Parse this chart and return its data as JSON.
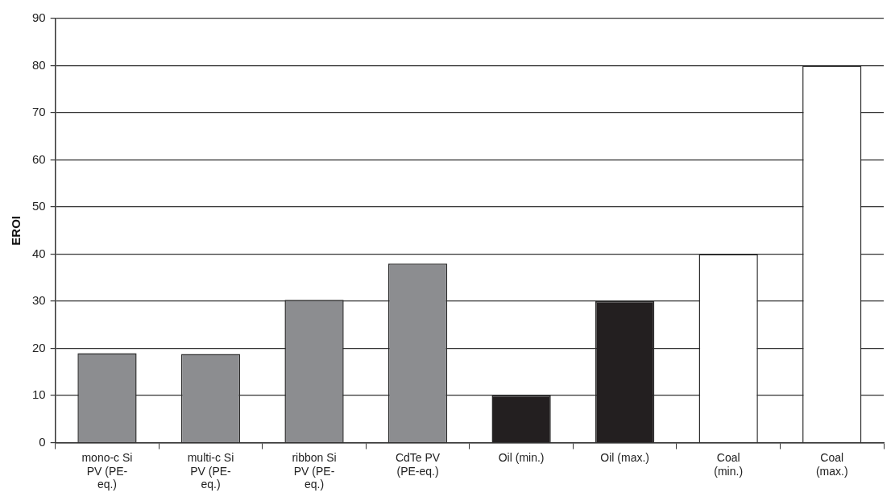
{
  "chart_data": {
    "type": "bar",
    "ylabel": "EROI",
    "categories": [
      "mono-c Si PV (PE-eq.)",
      "multi-c Si PV (PE-eq.)",
      "ribbon Si PV (PE-eq.)",
      "CdTe PV (PE-eq.)",
      "Oil (min.)",
      "Oil (max.)",
      "Coal (min.)",
      "Coal (max.)"
    ],
    "values": [
      19,
      18.8,
      30.3,
      38,
      10,
      30,
      40,
      80
    ],
    "colors": [
      "#8c8d90",
      "#8c8d90",
      "#8c8d90",
      "#8c8d90",
      "#231f20",
      "#231f20",
      "#ffffff",
      "#ffffff"
    ],
    "ylim": [
      0,
      90
    ],
    "yticks": [
      0,
      10,
      20,
      30,
      40,
      50,
      60,
      70,
      80,
      90
    ],
    "grid": "y",
    "legend": false
  }
}
